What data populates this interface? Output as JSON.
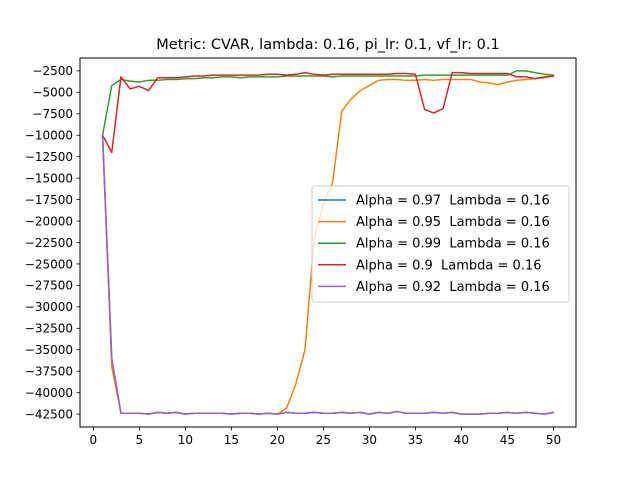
{
  "chart_data": {
    "type": "line",
    "title": "Metric: CVAR, lambda: 0.16, pi_lr: 0.1, vf_lr: 0.1",
    "xlabel": "",
    "ylabel": "",
    "xlim": [
      -1.45,
      52.45
    ],
    "ylim": [
      -44000,
      -1000
    ],
    "xticks": [
      0,
      5,
      10,
      15,
      20,
      25,
      30,
      35,
      40,
      45,
      50
    ],
    "yticks": [
      -2500,
      -5000,
      -7500,
      -10000,
      -12500,
      -15000,
      -17500,
      -20000,
      -22500,
      -25000,
      -27500,
      -30000,
      -32500,
      -35000,
      -37500,
      -40000,
      -42500
    ],
    "legend_position": "center-right",
    "grid": false,
    "x": [
      1,
      2,
      3,
      4,
      5,
      6,
      7,
      8,
      9,
      10,
      11,
      12,
      13,
      14,
      15,
      16,
      17,
      18,
      19,
      20,
      21,
      22,
      23,
      24,
      25,
      26,
      27,
      28,
      29,
      30,
      31,
      32,
      33,
      34,
      35,
      36,
      37,
      38,
      39,
      40,
      41,
      42,
      43,
      44,
      45,
      46,
      47,
      48,
      49,
      50
    ],
    "series": [
      {
        "name": "Alpha = 0.97  Lambda = 0.16",
        "color": "#1f77b4",
        "values": [
          -10000,
          -36000,
          -42400,
          -42400,
          -42400,
          -42500,
          -42300,
          -42400,
          -42300,
          -42500,
          -42400,
          -42400,
          -42400,
          -42400,
          -42500,
          -42400,
          -42400,
          -42500,
          -42400,
          -42500,
          -42300,
          -42400,
          -42400,
          -42300,
          -42400,
          -42400,
          -42300,
          -42400,
          -42300,
          -42500,
          -42300,
          -42400,
          -42200,
          -42400,
          -42400,
          -42400,
          -42300,
          -42400,
          -42300,
          -42500,
          -42500,
          -42500,
          -42400,
          -42400,
          -42300,
          -42400,
          -42300,
          -42400,
          -42500,
          -42300
        ]
      },
      {
        "name": "Alpha = 0.95  Lambda = 0.16",
        "color": "#ff7f0e",
        "values": [
          -10000,
          -37000,
          -42400,
          -42400,
          -42400,
          -42500,
          -42300,
          -42400,
          -42300,
          -42500,
          -42400,
          -42400,
          -42400,
          -42400,
          -42500,
          -42400,
          -42400,
          -42500,
          -42400,
          -42500,
          -41800,
          -39000,
          -35000,
          -22000,
          -18000,
          -15500,
          -7200,
          -5800,
          -4800,
          -4200,
          -3600,
          -3500,
          -3500,
          -3600,
          -3600,
          -3500,
          -3600,
          -3500,
          -3500,
          -3500,
          -3500,
          -3800,
          -3900,
          -4100,
          -3800,
          -3600,
          -3500,
          -3400,
          -3300,
          -3100
        ]
      },
      {
        "name": "Alpha = 0.99  Lambda = 0.16",
        "color": "#2ca02c",
        "values": [
          -10000,
          -4200,
          -3500,
          -3700,
          -3800,
          -3600,
          -3600,
          -3500,
          -3500,
          -3400,
          -3400,
          -3300,
          -3300,
          -3200,
          -3200,
          -3300,
          -3200,
          -3200,
          -3200,
          -3200,
          -3100,
          -3100,
          -3100,
          -3100,
          -3100,
          -3200,
          -3100,
          -3100,
          -3100,
          -3100,
          -3100,
          -3100,
          -3100,
          -3100,
          -3100,
          -3000,
          -3000,
          -3000,
          -3000,
          -3000,
          -3000,
          -3000,
          -3000,
          -3000,
          -3000,
          -2500,
          -2500,
          -2700,
          -2900,
          -3000
        ]
      },
      {
        "name": "Alpha = 0.9  Lambda = 0.16",
        "color": "#d62728",
        "values": [
          -10000,
          -12000,
          -3200,
          -4600,
          -4300,
          -4800,
          -3300,
          -3300,
          -3300,
          -3200,
          -3100,
          -3100,
          -3000,
          -3000,
          -3000,
          -3000,
          -3000,
          -3000,
          -2900,
          -2900,
          -3000,
          -2900,
          -2700,
          -2900,
          -3000,
          -2900,
          -2900,
          -2900,
          -2900,
          -2900,
          -2900,
          -2900,
          -2800,
          -2800,
          -2900,
          -7000,
          -7400,
          -6900,
          -2700,
          -2700,
          -2800,
          -2800,
          -2800,
          -2800,
          -2800,
          -3200,
          -3200,
          -3400,
          -3200,
          -3100
        ]
      },
      {
        "name": "Alpha = 0.92  Lambda = 0.16",
        "color": "#9467bd",
        "values": [
          -10000,
          -36000,
          -42400,
          -42400,
          -42400,
          -42500,
          -42300,
          -42400,
          -42300,
          -42500,
          -42400,
          -42400,
          -42400,
          -42400,
          -42500,
          -42400,
          -42400,
          -42500,
          -42400,
          -42500,
          -42300,
          -42400,
          -42400,
          -42300,
          -42400,
          -42400,
          -42300,
          -42400,
          -42300,
          -42500,
          -42300,
          -42400,
          -42200,
          -42400,
          -42400,
          -42400,
          -42300,
          -42400,
          -42300,
          -42500,
          -42500,
          -42500,
          -42400,
          -42400,
          -42300,
          -42400,
          -42300,
          -42400,
          -42500,
          -42300
        ]
      }
    ]
  }
}
